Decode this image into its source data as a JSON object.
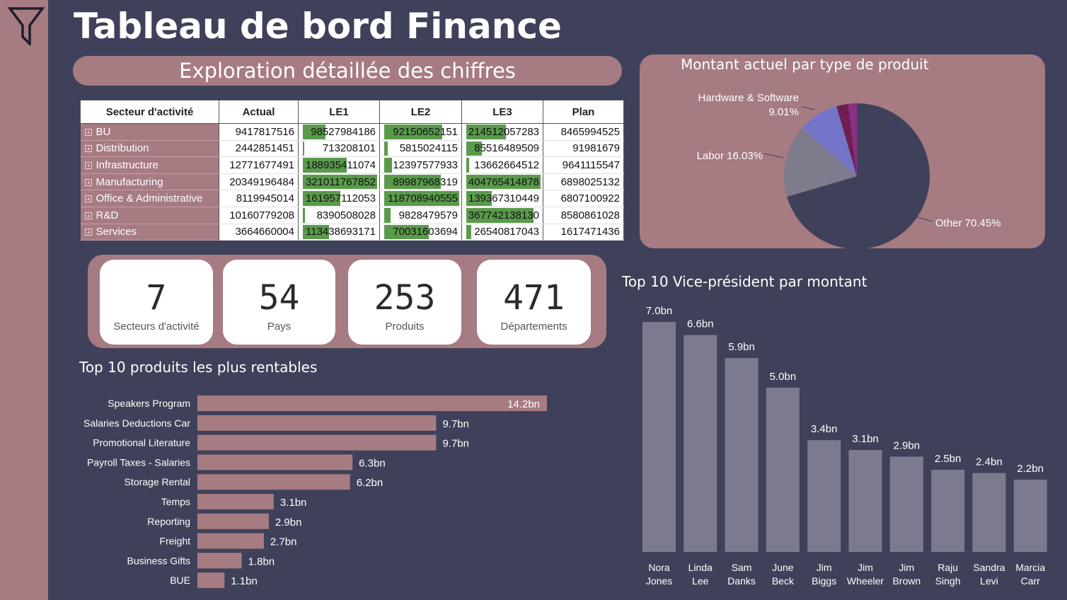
{
  "page": {
    "title": "Tableau de bord Finance"
  },
  "matrix": {
    "banner": "Exploration détaillée des chiffres",
    "headers": [
      "Secteur d'activité",
      "Actual",
      "LE1",
      "LE2",
      "LE3",
      "Plan"
    ],
    "rows": [
      {
        "label": "BU",
        "actual": "9417817516",
        "le1": "98527984186",
        "le2": "92150652151",
        "le3": "214512057283",
        "plan": "8465994525"
      },
      {
        "label": "Distribution",
        "actual": "2442851451",
        "le1": "713208101",
        "le2": "5815024115",
        "le3": "85516489509",
        "plan": "91981679"
      },
      {
        "label": "Infrastructure",
        "actual": "12771677491",
        "le1": "188935411074",
        "le2": "12397577933",
        "le3": "13662664512",
        "plan": "9641115547"
      },
      {
        "label": "Manufacturing",
        "actual": "20349196484",
        "le1": "321011767852",
        "le2": "89987968319",
        "le3": "404765414878",
        "plan": "6898025132"
      },
      {
        "label": "Office & Administrative",
        "actual": "8119945014",
        "le1": "161957112053",
        "le2": "118708940555",
        "le3": "139367310449",
        "plan": "6807100922"
      },
      {
        "label": "R&D",
        "actual": "10160779208",
        "le1": "8390508028",
        "le2": "9828479579",
        "le3": "367742138130",
        "plan": "8580861028"
      },
      {
        "label": "Services",
        "actual": "3664660004",
        "le1": "113438693171",
        "le2": "70031603694",
        "le3": "26540817043",
        "plan": "1617471436"
      }
    ],
    "bar_color": "#5a9a4b"
  },
  "pie": {
    "title": "Montant actuel par type de produit",
    "slices": [
      {
        "label": "Other",
        "pct_text": "70.45%",
        "value": 70.45,
        "color": "#3e4159"
      },
      {
        "label": "Labor",
        "pct_text": "16.03%",
        "value": 16.03,
        "color": "#7d7b8c"
      },
      {
        "label": "Hardware & Software",
        "pct_text": "9.01%",
        "value": 9.01,
        "color": "#7474c9"
      },
      {
        "label": "",
        "pct_text": "",
        "value": 2.6,
        "color": "#6d2050"
      },
      {
        "label": "",
        "pct_text": "",
        "value": 1.91,
        "color": "#8a2e86"
      }
    ],
    "label_texts": {
      "hardware_line1": "Hardware & Software",
      "hardware_line2": "9.01%",
      "labor": "Labor 16.03%",
      "other": "Other 70.45%"
    }
  },
  "kpis": [
    {
      "value": "7",
      "label": "Secteurs d'activité"
    },
    {
      "value": "54",
      "label": "Pays"
    },
    {
      "value": "253",
      "label": "Produits"
    },
    {
      "value": "471",
      "label": "Départements"
    }
  ],
  "products_chart": {
    "title": "Top 10 produits les plus rentables",
    "bar_color": "#a67b82"
  },
  "vp_chart": {
    "title": "Top 10 Vice-président par montant",
    "bar_color": "#7c7a8e"
  },
  "chart_data": [
    {
      "type": "bar",
      "orientation": "horizontal",
      "title": "Top 10 produits les plus rentables",
      "categories": [
        "Speakers Program",
        "Salaries Deductions Car",
        "Promotional Literature",
        "Payroll Taxes - Salaries",
        "Storage Rental",
        "Temps",
        "Reporting",
        "Freight",
        "Business Gifts",
        "BUE"
      ],
      "values": [
        14.2,
        9.7,
        9.7,
        6.3,
        6.2,
        3.1,
        2.9,
        2.7,
        1.8,
        1.1
      ],
      "value_labels": [
        "14.2bn",
        "9.7bn",
        "9.7bn",
        "6.3bn",
        "6.2bn",
        "3.1bn",
        "2.9bn",
        "2.7bn",
        "1.8bn",
        "1.1bn"
      ],
      "unit": "bn"
    },
    {
      "type": "bar",
      "orientation": "vertical",
      "title": "Top 10 Vice-président par montant",
      "categories": [
        [
          "Nora",
          "Jones"
        ],
        [
          "Linda",
          "Lee"
        ],
        [
          "Sam",
          "Danks"
        ],
        [
          "June",
          "Beck"
        ],
        [
          "Jim",
          "Biggs"
        ],
        [
          "Jim",
          "Wheeler"
        ],
        [
          "Jim",
          "Brown"
        ],
        [
          "Raju",
          "Singh"
        ],
        [
          "Sandra",
          "Levi"
        ],
        [
          "Marcia",
          "Carr"
        ]
      ],
      "values": [
        7.0,
        6.6,
        5.9,
        5.0,
        3.4,
        3.1,
        2.9,
        2.5,
        2.4,
        2.2
      ],
      "value_labels": [
        "7.0bn",
        "6.6bn",
        "5.9bn",
        "5.0bn",
        "3.4bn",
        "3.1bn",
        "2.9bn",
        "2.5bn",
        "2.4bn",
        "2.2bn"
      ],
      "unit": "bn"
    }
  ]
}
